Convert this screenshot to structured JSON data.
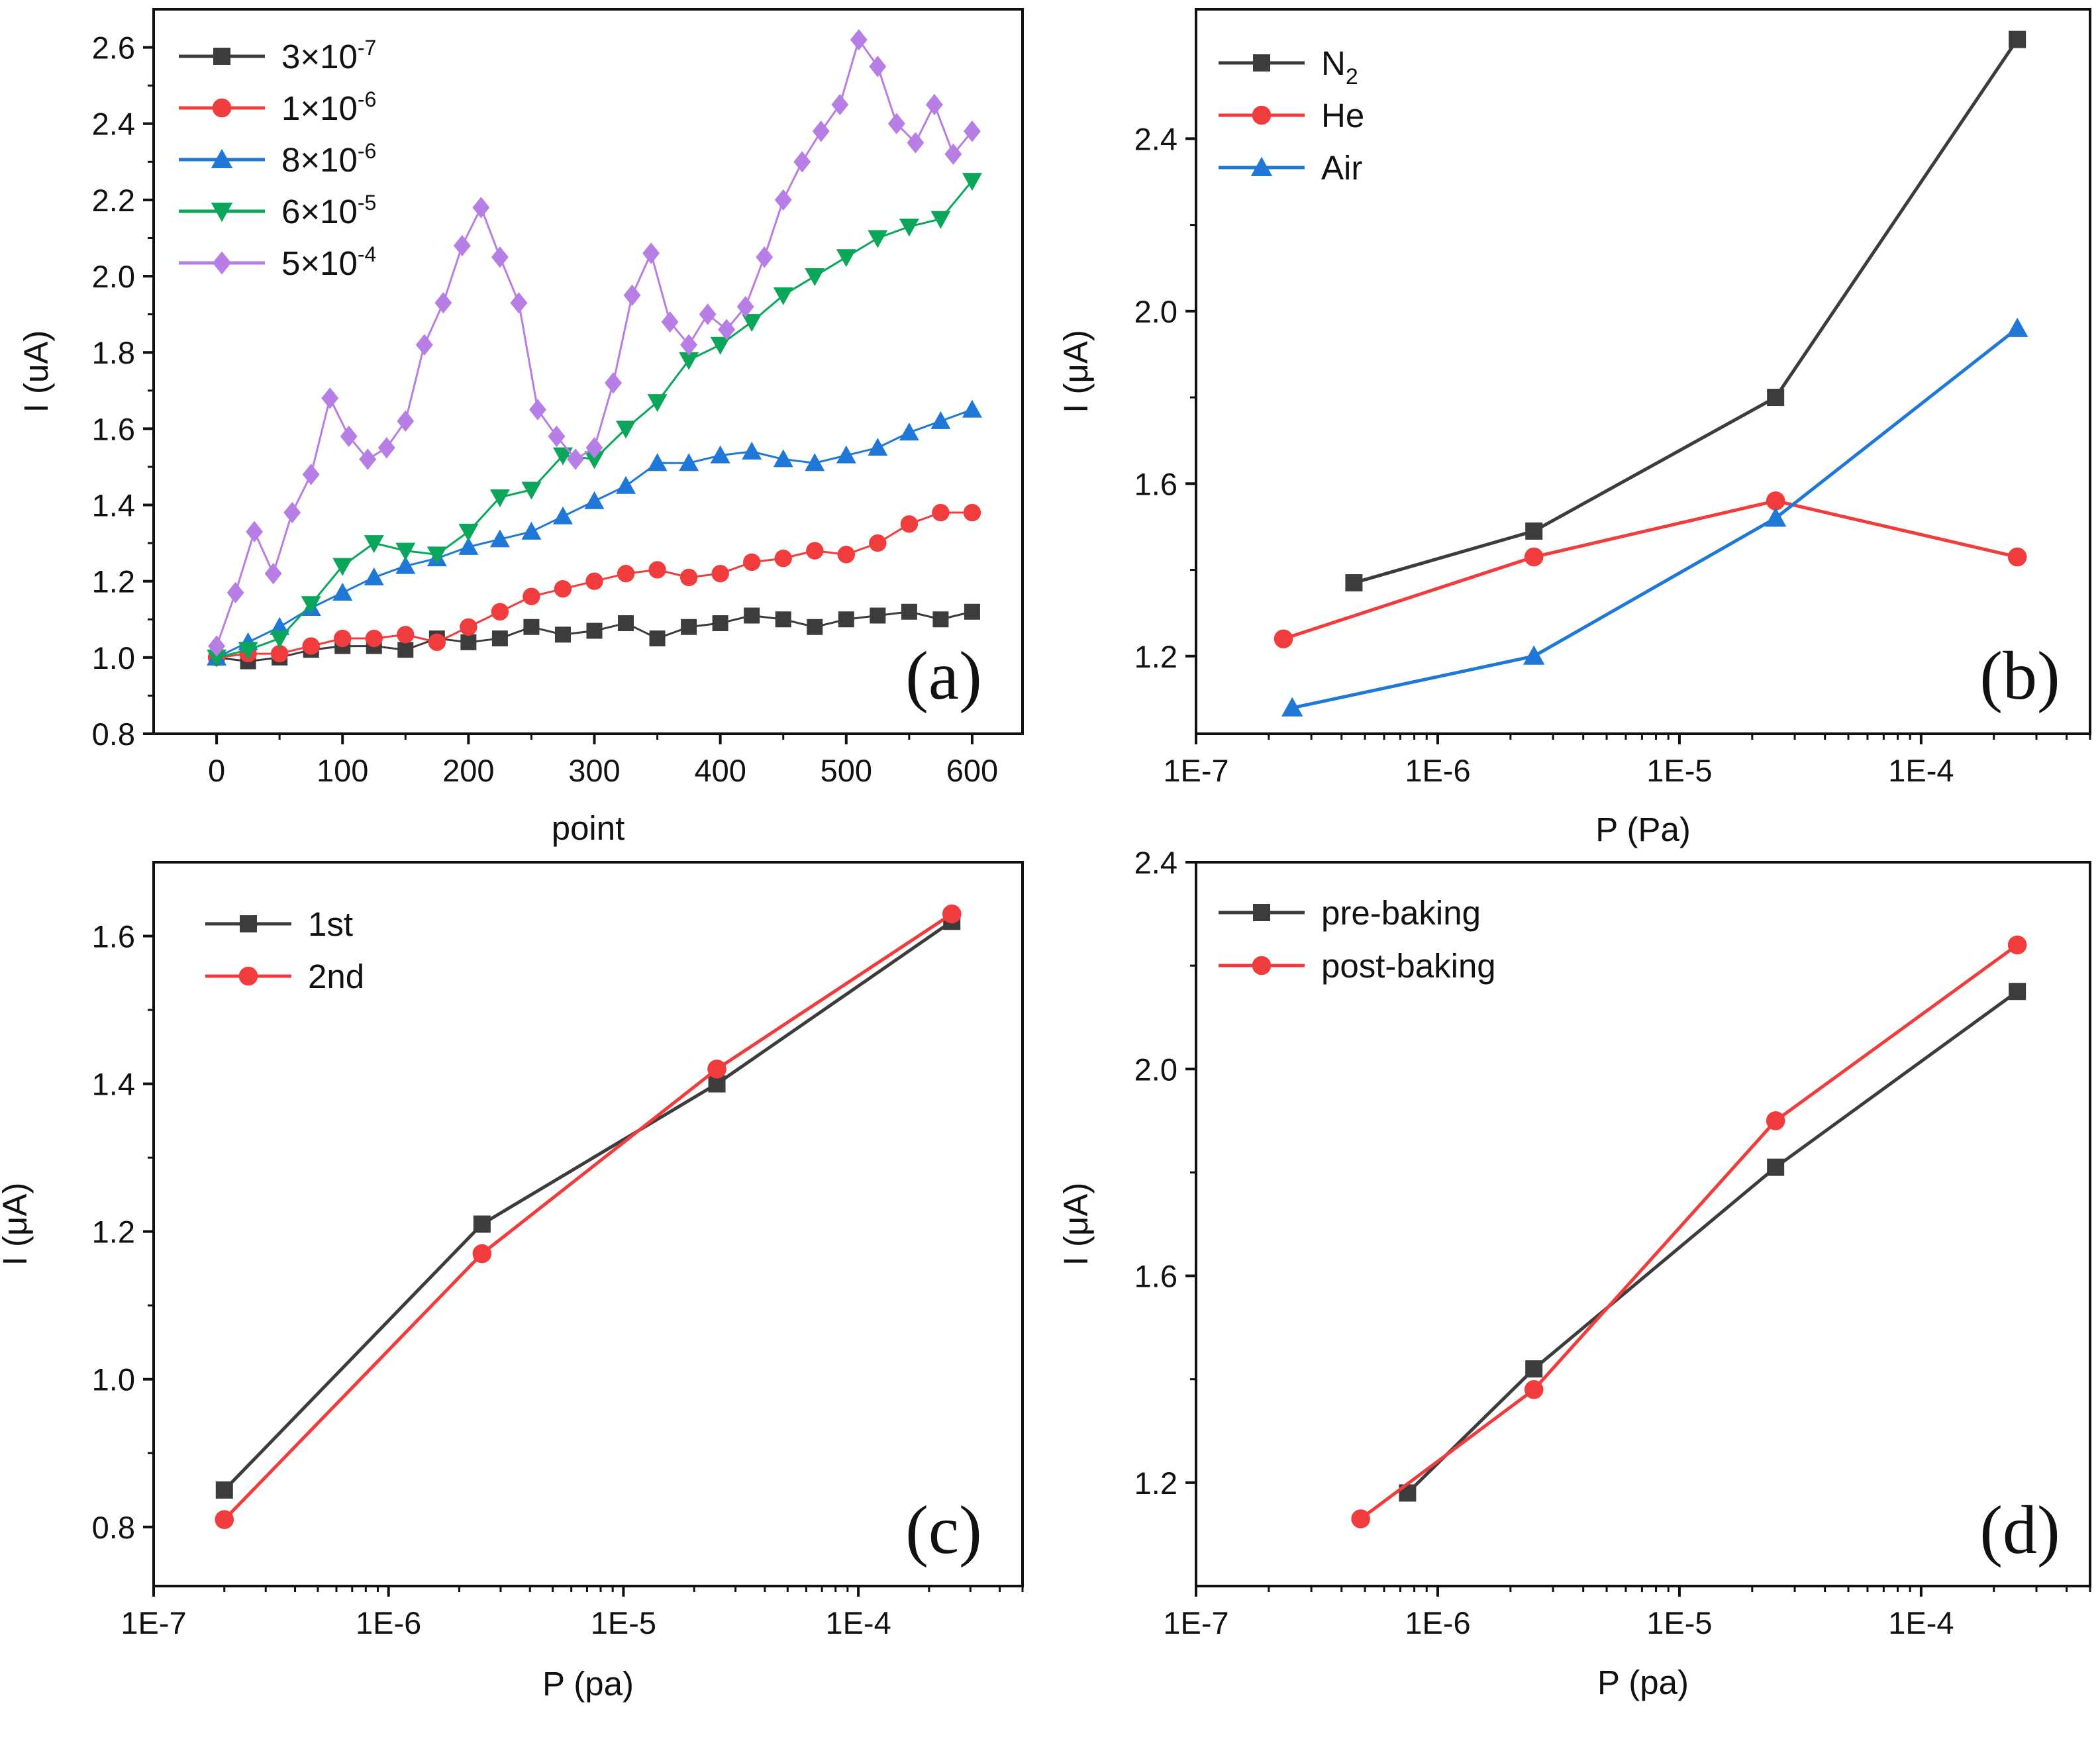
{
  "figure": {
    "colors": {
      "black": "#3c3c3c",
      "red": "#f03c3c",
      "blue": "#1f78d8",
      "green": "#0aa75a",
      "violet": "#b77ee6"
    }
  },
  "chart_data": [
    {
      "id": "a",
      "type": "scatter",
      "panel_tag": "(a)",
      "xlabel": "point",
      "ylabel": "I (uA)",
      "xscale": "linear",
      "xlim": [
        -50,
        640
      ],
      "ylim": [
        0.8,
        2.7
      ],
      "xticks": [
        0,
        100,
        200,
        300,
        400,
        500,
        600
      ],
      "xtick_labels": [
        "0",
        "100",
        "200",
        "300",
        "400",
        "500",
        "600"
      ],
      "yticks": [
        0.8,
        1.0,
        1.2,
        1.4,
        1.6,
        1.8,
        2.0,
        2.2,
        2.4,
        2.6
      ],
      "ytick_labels": [
        "0.8",
        "1.0",
        "1.2",
        "1.4",
        "1.6",
        "1.8",
        "2.0",
        "2.2",
        "2.4",
        "2.6"
      ],
      "legend_position": "top-left",
      "series": [
        {
          "name": "3×10-7",
          "label_base": "3×10",
          "label_exp": "-7",
          "color": "black",
          "marker": "square",
          "x": [
            0,
            25,
            50,
            75,
            100,
            125,
            150,
            175,
            200,
            225,
            250,
            275,
            300,
            325,
            350,
            375,
            400,
            425,
            450,
            475,
            500,
            525,
            550,
            575,
            600
          ],
          "y": [
            1.0,
            0.99,
            1.0,
            1.02,
            1.03,
            1.03,
            1.02,
            1.05,
            1.04,
            1.05,
            1.08,
            1.06,
            1.07,
            1.09,
            1.05,
            1.08,
            1.09,
            1.11,
            1.1,
            1.08,
            1.1,
            1.11,
            1.12,
            1.1,
            1.12
          ]
        },
        {
          "name": "1×10-6",
          "label_base": "1×10",
          "label_exp": "-6",
          "color": "red",
          "marker": "circle",
          "x": [
            0,
            25,
            50,
            75,
            100,
            125,
            150,
            175,
            200,
            225,
            250,
            275,
            300,
            325,
            350,
            375,
            400,
            425,
            450,
            475,
            500,
            525,
            550,
            575,
            600
          ],
          "y": [
            1.0,
            1.01,
            1.01,
            1.03,
            1.05,
            1.05,
            1.06,
            1.04,
            1.08,
            1.12,
            1.16,
            1.18,
            1.2,
            1.22,
            1.23,
            1.21,
            1.22,
            1.25,
            1.26,
            1.28,
            1.27,
            1.3,
            1.35,
            1.38,
            1.38
          ]
        },
        {
          "name": "8×10-6",
          "label_base": "8×10",
          "label_exp": "-6",
          "color": "blue",
          "marker": "triangle-up",
          "x": [
            0,
            25,
            50,
            75,
            100,
            125,
            150,
            175,
            200,
            225,
            250,
            275,
            300,
            325,
            350,
            375,
            400,
            425,
            450,
            475,
            500,
            525,
            550,
            575,
            600
          ],
          "y": [
            1.0,
            1.04,
            1.08,
            1.13,
            1.17,
            1.21,
            1.24,
            1.26,
            1.29,
            1.31,
            1.33,
            1.37,
            1.41,
            1.45,
            1.51,
            1.51,
            1.53,
            1.54,
            1.52,
            1.51,
            1.53,
            1.55,
            1.59,
            1.62,
            1.65
          ]
        },
        {
          "name": "6×10-5",
          "label_base": "6×10",
          "label_exp": "-5",
          "color": "green",
          "marker": "triangle-down",
          "x": [
            0,
            25,
            50,
            75,
            100,
            125,
            150,
            175,
            200,
            225,
            250,
            275,
            300,
            325,
            350,
            375,
            400,
            425,
            450,
            475,
            500,
            525,
            550,
            575,
            600
          ],
          "y": [
            1.0,
            1.02,
            1.05,
            1.14,
            1.24,
            1.3,
            1.28,
            1.27,
            1.33,
            1.42,
            1.44,
            1.53,
            1.52,
            1.6,
            1.67,
            1.78,
            1.82,
            1.88,
            1.95,
            2.0,
            2.05,
            2.1,
            2.13,
            2.15,
            2.25
          ]
        },
        {
          "name": "5×10-4",
          "label_base": "5×10",
          "label_exp": "-4",
          "color": "violet",
          "marker": "diamond",
          "x": [
            0,
            15,
            30,
            45,
            60,
            75,
            90,
            105,
            120,
            135,
            150,
            165,
            180,
            195,
            210,
            225,
            240,
            255,
            270,
            285,
            300,
            315,
            330,
            345,
            360,
            375,
            390,
            405,
            420,
            435,
            450,
            465,
            480,
            495,
            510,
            525,
            540,
            555,
            570,
            585,
            600
          ],
          "y": [
            1.03,
            1.17,
            1.33,
            1.22,
            1.38,
            1.48,
            1.68,
            1.58,
            1.52,
            1.55,
            1.62,
            1.82,
            1.93,
            2.08,
            2.18,
            2.05,
            1.93,
            1.65,
            1.58,
            1.52,
            1.55,
            1.72,
            1.95,
            2.06,
            1.88,
            1.82,
            1.9,
            1.86,
            1.92,
            2.05,
            2.2,
            2.3,
            2.38,
            2.45,
            2.62,
            2.55,
            2.4,
            2.35,
            2.45,
            2.32,
            2.38
          ]
        }
      ]
    },
    {
      "id": "b",
      "type": "line",
      "panel_tag": "(b)",
      "xlabel": "P (Pa)",
      "ylabel": "I (μA)",
      "xscale": "log",
      "xlim": [
        1e-07,
        0.0005
      ],
      "ylim": [
        1.02,
        2.7
      ],
      "xticks": [
        1e-07,
        1e-06,
        1e-05,
        0.0001
      ],
      "xtick_labels": [
        "1E-7",
        "1E-6",
        "1E-5",
        "1E-4"
      ],
      "yticks": [
        1.2,
        1.6,
        2.0,
        2.4
      ],
      "ytick_labels": [
        "1.2",
        "1.6",
        "2.0",
        "2.4"
      ],
      "legend_position": "top-left",
      "series": [
        {
          "name": "N2",
          "label_base": "N",
          "label_sub": "2",
          "color": "black",
          "marker": "square",
          "x": [
            4.5e-07,
            2.5e-06,
            2.5e-05,
            0.00025
          ],
          "y": [
            1.37,
            1.49,
            1.8,
            2.63
          ]
        },
        {
          "name": "He",
          "label_base": "He",
          "color": "red",
          "marker": "circle",
          "x": [
            2.3e-07,
            2.5e-06,
            2.5e-05,
            0.00025
          ],
          "y": [
            1.24,
            1.43,
            1.56,
            1.43
          ]
        },
        {
          "name": "Air",
          "label_base": "Air",
          "color": "blue",
          "marker": "triangle-up",
          "x": [
            2.5e-07,
            2.5e-06,
            2.5e-05,
            0.00025
          ],
          "y": [
            1.08,
            1.2,
            1.52,
            1.96
          ]
        }
      ]
    },
    {
      "id": "c",
      "type": "line",
      "panel_tag": "(c)",
      "xlabel": "P (pa)",
      "ylabel": "I (μA)",
      "xscale": "log",
      "xlim": [
        1e-07,
        0.0005
      ],
      "ylim": [
        0.72,
        1.7
      ],
      "xticks": [
        1e-07,
        1e-06,
        1e-05,
        0.0001
      ],
      "xtick_labels": [
        "1E-7",
        "1E-6",
        "1E-5",
        "1E-4"
      ],
      "yticks": [
        0.8,
        1.0,
        1.2,
        1.4,
        1.6
      ],
      "ytick_labels": [
        "0.8",
        "1.0",
        "1.2",
        "1.4",
        "1.6"
      ],
      "legend_position": "top-left",
      "series": [
        {
          "name": "1st",
          "label_base": "1st",
          "color": "black",
          "marker": "square",
          "x": [
            2e-07,
            2.5e-06,
            2.5e-05,
            0.00025
          ],
          "y": [
            0.85,
            1.21,
            1.4,
            1.62
          ]
        },
        {
          "name": "2nd",
          "label_base": "2nd",
          "color": "red",
          "marker": "circle",
          "x": [
            2e-07,
            2.5e-06,
            2.5e-05,
            0.00025
          ],
          "y": [
            0.81,
            1.17,
            1.42,
            1.63
          ]
        }
      ]
    },
    {
      "id": "d",
      "type": "line",
      "panel_tag": "(d)",
      "xlabel": "P (pa)",
      "ylabel": "I (μA)",
      "xscale": "log",
      "xlim": [
        1e-07,
        0.0005
      ],
      "ylim": [
        1.0,
        2.4
      ],
      "xticks": [
        1e-07,
        1e-06,
        1e-05,
        0.0001
      ],
      "xtick_labels": [
        "1E-7",
        "1E-6",
        "1E-5",
        "1E-4"
      ],
      "yticks": [
        1.2,
        1.6,
        2.0,
        2.4
      ],
      "ytick_labels": [
        "1.2",
        "1.6",
        "2.0",
        "2.4"
      ],
      "legend_position": "top-left",
      "series": [
        {
          "name": "pre-baking",
          "label_base": "pre-baking",
          "color": "black",
          "marker": "square",
          "x": [
            7.5e-07,
            2.5e-06,
            2.5e-05,
            0.00025
          ],
          "y": [
            1.18,
            1.42,
            1.81,
            2.15
          ]
        },
        {
          "name": "post-baking",
          "label_base": "post-baking",
          "color": "red",
          "marker": "circle",
          "x": [
            4.8e-07,
            2.5e-06,
            2.5e-05,
            0.00025
          ],
          "y": [
            1.13,
            1.38,
            1.9,
            2.24
          ]
        }
      ]
    }
  ]
}
